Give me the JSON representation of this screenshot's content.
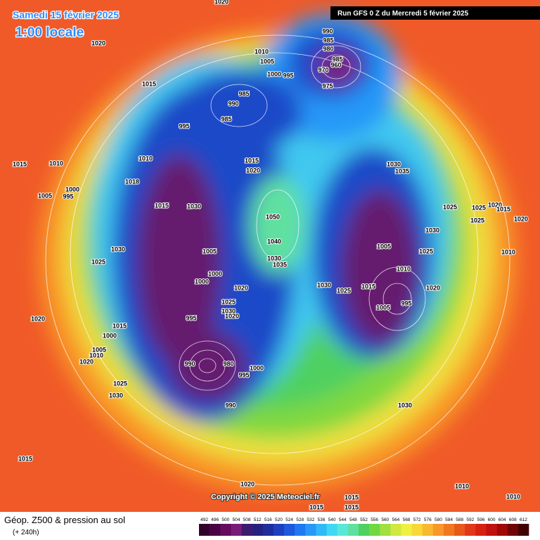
{
  "header": {
    "date": "Samedi 15 février 2025",
    "time": "1:00 locale",
    "run": "Run GFS 0 Z du Mercredi 5 février 2025"
  },
  "copyright": "Copyright © 2025 Meteociel.fr",
  "footer": {
    "title": "Géop. Z500 & pression au sol",
    "lead": "(+ 240h)"
  },
  "scale": {
    "labels": [
      492,
      496,
      500,
      504,
      508,
      512,
      516,
      520,
      524,
      528,
      532,
      536,
      540,
      544,
      548,
      552,
      556,
      560,
      564,
      568,
      572,
      576,
      580,
      584,
      588,
      592,
      596,
      600,
      604,
      608,
      612
    ],
    "colors": [
      "#33002e",
      "#4a0045",
      "#650a5e",
      "#7a1a78",
      "#3c1a6e",
      "#28207e",
      "#1e2c9c",
      "#1e40c0",
      "#1e58dc",
      "#2078f0",
      "#2898f8",
      "#30b8f8",
      "#40d8f0",
      "#58e8d8",
      "#60e0a0",
      "#50d060",
      "#70d840",
      "#a0e040",
      "#d0e840",
      "#f0f040",
      "#f8d838",
      "#f8b830",
      "#f89828",
      "#f07820",
      "#e85818",
      "#e03818",
      "#d82010",
      "#c01010",
      "#a00808",
      "#700404",
      "#400000"
    ]
  },
  "isobar_labels": [
    "1020",
    "1020",
    "1015",
    "1010",
    "1005",
    "1000",
    "995",
    "990",
    "985",
    "980",
    "985",
    "960",
    "970",
    "975",
    "985",
    "990",
    "985",
    "995",
    "1010",
    "1018",
    "1015",
    "1020",
    "1030",
    "1035",
    "1015",
    "1010",
    "1000",
    "995",
    "1005",
    "1015",
    "1030",
    "1050",
    "1040",
    "1030",
    "1035",
    "1005",
    "1000",
    "1000",
    "1020",
    "1025",
    "1030",
    "1020",
    "995",
    "1030",
    "1025",
    "1030",
    "1025",
    "1015",
    "1005",
    "1010",
    "1005",
    "995",
    "1020",
    "1030",
    "1025",
    "1025",
    "1025",
    "1020",
    "1015",
    "1025",
    "1020",
    "1010",
    "1020",
    "1015",
    "1000",
    "1005",
    "1010",
    "1020",
    "990",
    "980",
    "1000",
    "995",
    "1025",
    "1030",
    "990",
    "1030",
    "1015",
    "1020",
    "1010",
    "1010",
    "1015",
    "1015",
    "1015"
  ]
}
